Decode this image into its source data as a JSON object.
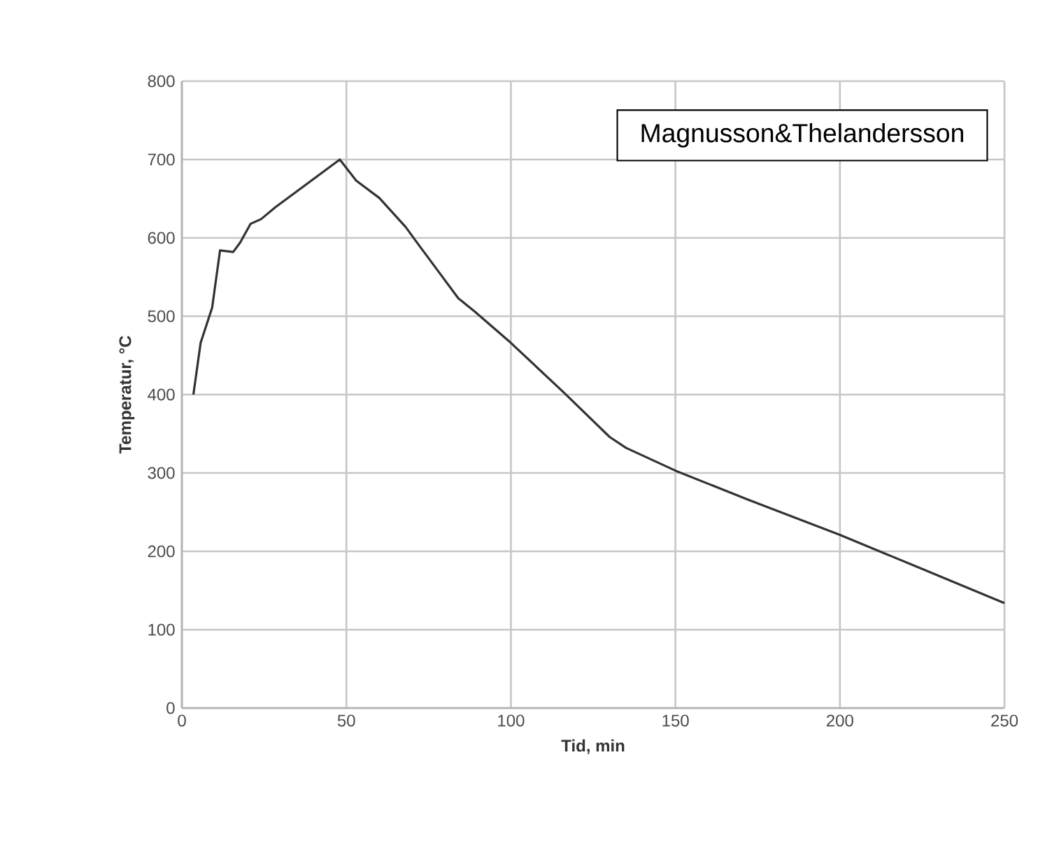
{
  "chart_data": {
    "type": "line",
    "xlabel": "Tid, min",
    "ylabel": "Temperatur, °C",
    "annotations": [
      "Magnusson&Thelandersson"
    ],
    "x": [
      3.5,
      5.7,
      9.2,
      11.6,
      15.6,
      17.7,
      20.9,
      24.1,
      28.4,
      48,
      53,
      60,
      68,
      72,
      78,
      84,
      89,
      100,
      116,
      130,
      135,
      150,
      172,
      200,
      223,
      250
    ],
    "series": [
      {
        "color": "#333333",
        "values": [
          400,
          466,
          511,
          584,
          582,
          594,
          618,
          624,
          639,
          700,
          673,
          651,
          614,
          591,
          557,
          523,
          506,
          466,
          403,
          346,
          332,
          303,
          266,
          221,
          181,
          134
        ]
      }
    ],
    "xlim": [
      0,
      250
    ],
    "ylim": [
      0,
      800
    ],
    "xticks": [
      0,
      50,
      100,
      150,
      200,
      250
    ],
    "yticks": [
      0,
      100,
      200,
      300,
      400,
      500,
      600,
      700,
      800
    ],
    "grid": true,
    "marker": "none",
    "line_style": "solid"
  }
}
